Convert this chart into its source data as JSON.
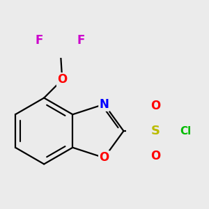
{
  "bg_color": "#ebebeb",
  "bond_color": "#000000",
  "bond_width": 1.6,
  "atom_colors": {
    "F": "#cc00cc",
    "O": "#ff0000",
    "N": "#0000ff",
    "S": "#bbbb00",
    "Cl": "#00bb00"
  },
  "font_size": 12,
  "font_size_cl": 11
}
